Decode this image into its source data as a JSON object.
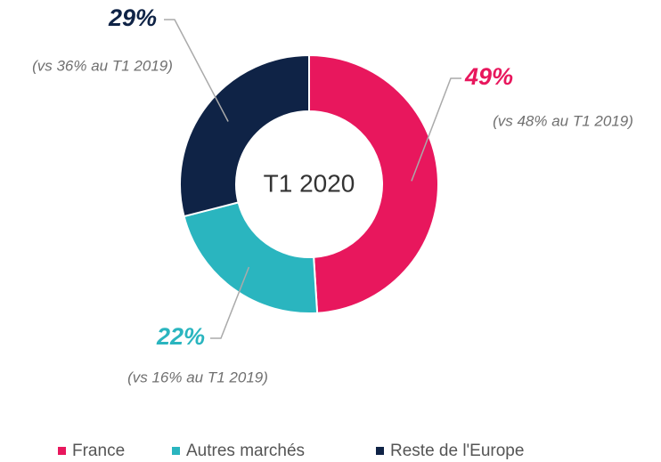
{
  "chart_data": {
    "type": "pie",
    "donut": true,
    "center_label": "T1 2020",
    "categories": [
      "France",
      "Autres marchés",
      "Reste de l'Europe"
    ],
    "values": [
      49,
      22,
      29
    ],
    "value_labels": [
      "49%",
      "22%",
      "29%"
    ],
    "comparisons": [
      "(vs 48% au T1 2019)",
      "(vs 16% au T1 2019)",
      "(vs 36% au T1 2019)"
    ],
    "colors": [
      "#e8175d",
      "#2ab5bf",
      "#0f2346"
    ],
    "legend": "bottom"
  }
}
